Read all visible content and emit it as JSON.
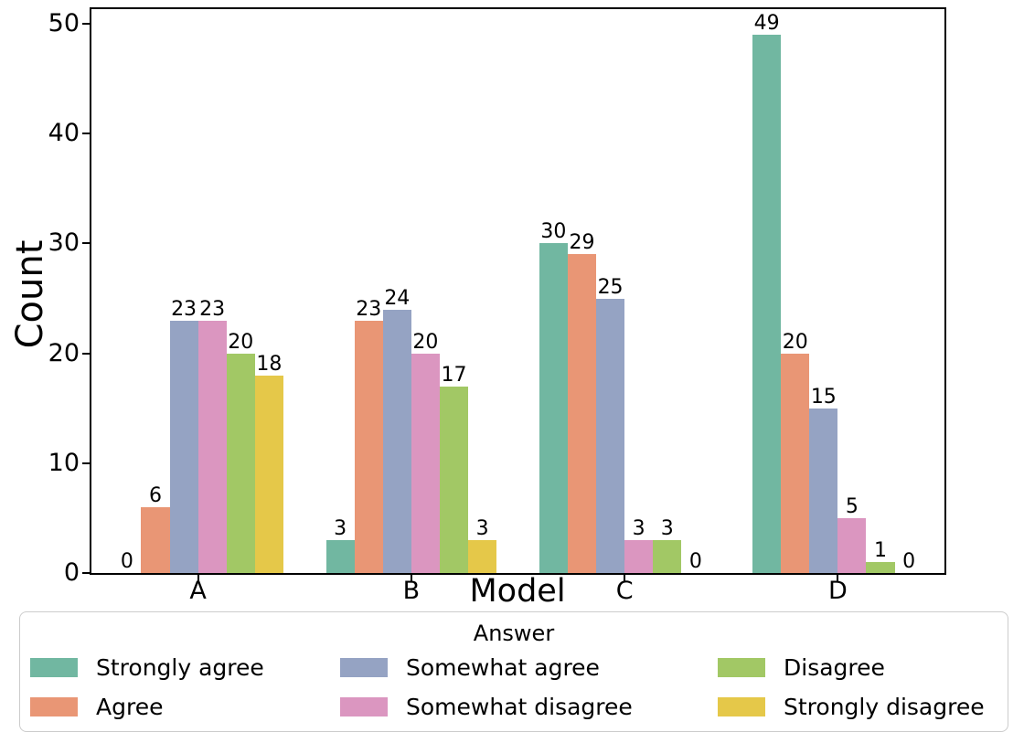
{
  "figure": {
    "background": "#ffffff",
    "axis_color": "#000000",
    "text_color": "#000000",
    "legend_border_color": "#cccccc"
  },
  "chart_data": {
    "type": "bar",
    "title": "",
    "xlabel": "Model",
    "ylabel": "Count",
    "categories": [
      "A",
      "B",
      "C",
      "D"
    ],
    "series": [
      {
        "name": "Strongly agree",
        "color": "#71b7a1",
        "values": [
          0,
          3,
          30,
          49
        ]
      },
      {
        "name": "Agree",
        "color": "#e99675",
        "values": [
          6,
          23,
          29,
          20
        ]
      },
      {
        "name": "Somewhat agree",
        "color": "#95a3c3",
        "values": [
          23,
          24,
          25,
          15
        ]
      },
      {
        "name": "Somewhat disagree",
        "color": "#db96c0",
        "values": [
          23,
          20,
          3,
          5
        ]
      },
      {
        "name": "Disagree",
        "color": "#a2c865",
        "values": [
          20,
          17,
          3,
          1
        ]
      },
      {
        "name": "Strongly disagree",
        "color": "#e5c849",
        "values": [
          18,
          3,
          0,
          0
        ]
      }
    ],
    "bar_value_labels": true,
    "y_ticks": [
      0,
      10,
      20,
      30,
      40,
      50
    ],
    "ylim": [
      0,
      51.3
    ],
    "grid": false,
    "legend": {
      "title": "Answer",
      "position": "bottom",
      "columns": 3
    }
  }
}
